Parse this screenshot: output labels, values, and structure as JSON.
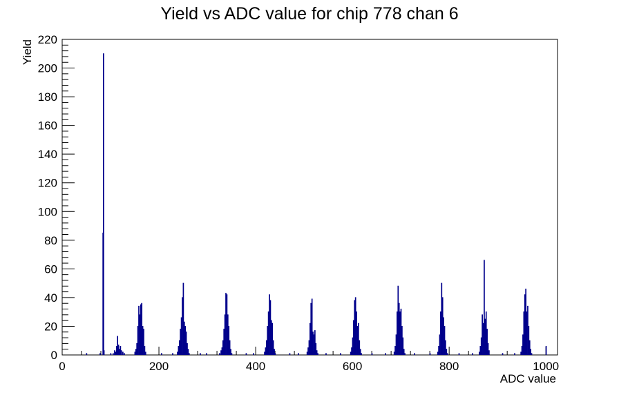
{
  "chart_data": {
    "type": "bar",
    "title": "Yield vs ADC value for chip 778 chan 6",
    "xlabel": "ADC value",
    "ylabel": "Yield",
    "xlim": [
      0,
      1024
    ],
    "ylim": [
      0,
      220
    ],
    "x_ticks": [
      0,
      200,
      400,
      600,
      800,
      1000
    ],
    "y_ticks": [
      0,
      20,
      40,
      60,
      80,
      100,
      120,
      140,
      160,
      180,
      200,
      220
    ],
    "grid": false,
    "line_color": "#00008b",
    "bin_width": 1,
    "bins": [
      {
        "x": 50,
        "y": 1
      },
      {
        "x": 78,
        "y": 1
      },
      {
        "x": 84,
        "y": 85
      },
      {
        "x": 85,
        "y": 210
      },
      {
        "x": 86,
        "y": 3
      },
      {
        "x": 100,
        "y": 1
      },
      {
        "x": 105,
        "y": 1
      },
      {
        "x": 108,
        "y": 3
      },
      {
        "x": 110,
        "y": 2
      },
      {
        "x": 112,
        "y": 6
      },
      {
        "x": 114,
        "y": 13
      },
      {
        "x": 116,
        "y": 7
      },
      {
        "x": 118,
        "y": 4
      },
      {
        "x": 120,
        "y": 6
      },
      {
        "x": 122,
        "y": 3
      },
      {
        "x": 125,
        "y": 2
      },
      {
        "x": 128,
        "y": 1
      },
      {
        "x": 150,
        "y": 2
      },
      {
        "x": 152,
        "y": 4
      },
      {
        "x": 154,
        "y": 8
      },
      {
        "x": 156,
        "y": 20
      },
      {
        "x": 158,
        "y": 34
      },
      {
        "x": 160,
        "y": 28
      },
      {
        "x": 162,
        "y": 35
      },
      {
        "x": 164,
        "y": 36
      },
      {
        "x": 166,
        "y": 20
      },
      {
        "x": 168,
        "y": 18
      },
      {
        "x": 170,
        "y": 6
      },
      {
        "x": 172,
        "y": 2
      },
      {
        "x": 205,
        "y": 1
      },
      {
        "x": 228,
        "y": 1
      },
      {
        "x": 238,
        "y": 2
      },
      {
        "x": 240,
        "y": 6
      },
      {
        "x": 242,
        "y": 10
      },
      {
        "x": 244,
        "y": 18
      },
      {
        "x": 246,
        "y": 26
      },
      {
        "x": 248,
        "y": 40
      },
      {
        "x": 250,
        "y": 50
      },
      {
        "x": 252,
        "y": 23
      },
      {
        "x": 254,
        "y": 20
      },
      {
        "x": 256,
        "y": 16
      },
      {
        "x": 258,
        "y": 8
      },
      {
        "x": 260,
        "y": 4
      },
      {
        "x": 262,
        "y": 1
      },
      {
        "x": 285,
        "y": 1
      },
      {
        "x": 298,
        "y": 1
      },
      {
        "x": 325,
        "y": 1
      },
      {
        "x": 328,
        "y": 3
      },
      {
        "x": 330,
        "y": 5
      },
      {
        "x": 332,
        "y": 10
      },
      {
        "x": 334,
        "y": 18
      },
      {
        "x": 336,
        "y": 28
      },
      {
        "x": 338,
        "y": 43
      },
      {
        "x": 340,
        "y": 42
      },
      {
        "x": 342,
        "y": 28
      },
      {
        "x": 344,
        "y": 20
      },
      {
        "x": 346,
        "y": 10
      },
      {
        "x": 348,
        "y": 4
      },
      {
        "x": 350,
        "y": 1
      },
      {
        "x": 380,
        "y": 1
      },
      {
        "x": 395,
        "y": 1
      },
      {
        "x": 418,
        "y": 2
      },
      {
        "x": 420,
        "y": 5
      },
      {
        "x": 422,
        "y": 10
      },
      {
        "x": 424,
        "y": 20
      },
      {
        "x": 426,
        "y": 30
      },
      {
        "x": 428,
        "y": 42
      },
      {
        "x": 430,
        "y": 38
      },
      {
        "x": 432,
        "y": 24
      },
      {
        "x": 434,
        "y": 22
      },
      {
        "x": 436,
        "y": 10
      },
      {
        "x": 438,
        "y": 4
      },
      {
        "x": 440,
        "y": 1
      },
      {
        "x": 470,
        "y": 1
      },
      {
        "x": 488,
        "y": 1
      },
      {
        "x": 506,
        "y": 2
      },
      {
        "x": 508,
        "y": 5
      },
      {
        "x": 510,
        "y": 10
      },
      {
        "x": 512,
        "y": 22
      },
      {
        "x": 514,
        "y": 36
      },
      {
        "x": 516,
        "y": 39
      },
      {
        "x": 518,
        "y": 16
      },
      {
        "x": 520,
        "y": 14
      },
      {
        "x": 522,
        "y": 17
      },
      {
        "x": 524,
        "y": 8
      },
      {
        "x": 526,
        "y": 3
      },
      {
        "x": 528,
        "y": 1
      },
      {
        "x": 545,
        "y": 1
      },
      {
        "x": 575,
        "y": 1
      },
      {
        "x": 596,
        "y": 2
      },
      {
        "x": 598,
        "y": 5
      },
      {
        "x": 600,
        "y": 12
      },
      {
        "x": 602,
        "y": 24
      },
      {
        "x": 604,
        "y": 38
      },
      {
        "x": 606,
        "y": 40
      },
      {
        "x": 608,
        "y": 30
      },
      {
        "x": 610,
        "y": 20
      },
      {
        "x": 612,
        "y": 22
      },
      {
        "x": 614,
        "y": 10
      },
      {
        "x": 616,
        "y": 4
      },
      {
        "x": 618,
        "y": 1
      },
      {
        "x": 640,
        "y": 1
      },
      {
        "x": 668,
        "y": 1
      },
      {
        "x": 686,
        "y": 2
      },
      {
        "x": 688,
        "y": 6
      },
      {
        "x": 690,
        "y": 14
      },
      {
        "x": 692,
        "y": 30
      },
      {
        "x": 694,
        "y": 48
      },
      {
        "x": 696,
        "y": 36
      },
      {
        "x": 698,
        "y": 30
      },
      {
        "x": 700,
        "y": 32
      },
      {
        "x": 702,
        "y": 20
      },
      {
        "x": 704,
        "y": 12
      },
      {
        "x": 706,
        "y": 4
      },
      {
        "x": 708,
        "y": 1
      },
      {
        "x": 728,
        "y": 1
      },
      {
        "x": 760,
        "y": 1
      },
      {
        "x": 776,
        "y": 2
      },
      {
        "x": 778,
        "y": 6
      },
      {
        "x": 780,
        "y": 14
      },
      {
        "x": 782,
        "y": 30
      },
      {
        "x": 784,
        "y": 50
      },
      {
        "x": 786,
        "y": 40
      },
      {
        "x": 788,
        "y": 26
      },
      {
        "x": 790,
        "y": 20
      },
      {
        "x": 792,
        "y": 10
      },
      {
        "x": 794,
        "y": 4
      },
      {
        "x": 796,
        "y": 1
      },
      {
        "x": 820,
        "y": 1
      },
      {
        "x": 848,
        "y": 1
      },
      {
        "x": 862,
        "y": 2
      },
      {
        "x": 864,
        "y": 6
      },
      {
        "x": 866,
        "y": 12
      },
      {
        "x": 868,
        "y": 28
      },
      {
        "x": 870,
        "y": 22
      },
      {
        "x": 872,
        "y": 66
      },
      {
        "x": 874,
        "y": 25
      },
      {
        "x": 876,
        "y": 30
      },
      {
        "x": 878,
        "y": 18
      },
      {
        "x": 880,
        "y": 8
      },
      {
        "x": 882,
        "y": 3
      },
      {
        "x": 910,
        "y": 1
      },
      {
        "x": 935,
        "y": 1
      },
      {
        "x": 948,
        "y": 2
      },
      {
        "x": 950,
        "y": 6
      },
      {
        "x": 952,
        "y": 14
      },
      {
        "x": 954,
        "y": 30
      },
      {
        "x": 956,
        "y": 42
      },
      {
        "x": 958,
        "y": 46
      },
      {
        "x": 960,
        "y": 30
      },
      {
        "x": 962,
        "y": 34
      },
      {
        "x": 964,
        "y": 20
      },
      {
        "x": 966,
        "y": 10
      },
      {
        "x": 968,
        "y": 4
      },
      {
        "x": 970,
        "y": 1
      },
      {
        "x": 1000,
        "y": 6
      }
    ]
  }
}
